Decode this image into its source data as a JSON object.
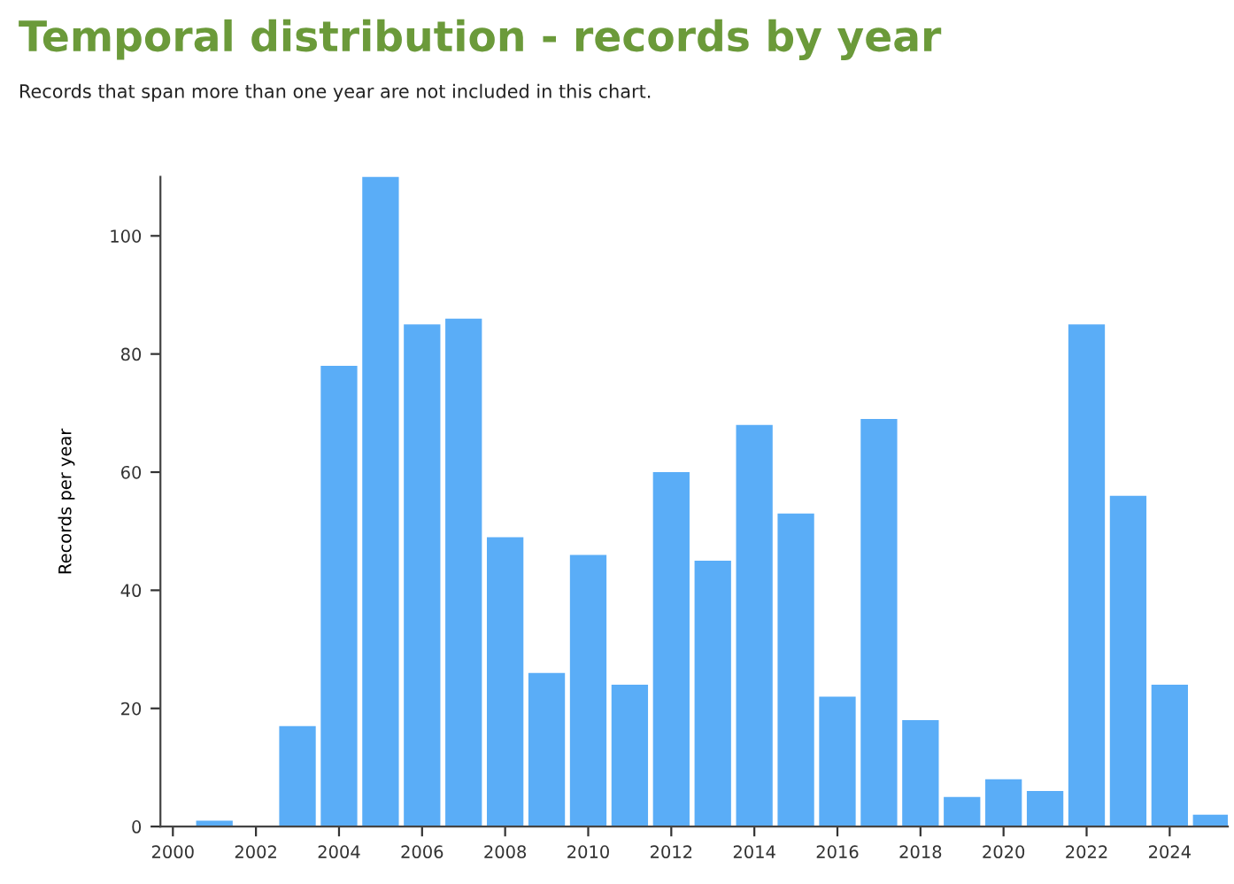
{
  "chart_data": {
    "type": "bar",
    "title": "Temporal distribution - records by year",
    "subtitle": "Records that span more than one year are not included in this chart.",
    "ylabel": "Records per year",
    "x": [
      2001,
      2002,
      2003,
      2004,
      2005,
      2006,
      2007,
      2008,
      2009,
      2010,
      2011,
      2012,
      2013,
      2014,
      2015,
      2016,
      2017,
      2018,
      2019,
      2020,
      2021,
      2022,
      2023,
      2024,
      2025
    ],
    "values": [
      1,
      0,
      17,
      78,
      110,
      85,
      86,
      49,
      26,
      46,
      24,
      60,
      45,
      68,
      53,
      22,
      69,
      18,
      5,
      8,
      6,
      85,
      56,
      24,
      2
    ],
    "color": "#5aadf7",
    "xlim": [
      1999.7,
      2025.4
    ],
    "xticks": [
      2000,
      2002,
      2004,
      2006,
      2008,
      2010,
      2012,
      2014,
      2016,
      2018,
      2020,
      2022,
      2024
    ],
    "ylim": [
      0,
      110
    ],
    "yticks": [
      0,
      20,
      40,
      60,
      80,
      100
    ],
    "grid": false,
    "legend": false
  }
}
